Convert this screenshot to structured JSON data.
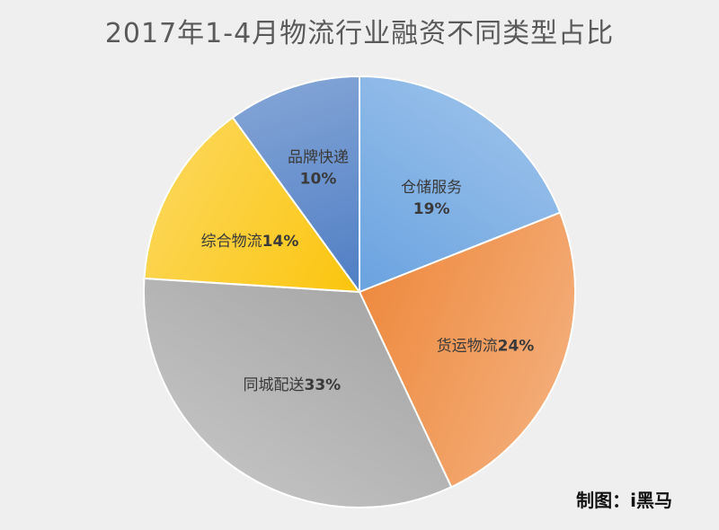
{
  "chart_data": {
    "type": "pie",
    "title": "2017年1-4月物流行业融资不同类型占比",
    "slices": [
      {
        "name": "仓储服务",
        "value": 19,
        "label": "19%",
        "color": "#6aa3e0"
      },
      {
        "name": "货运物流",
        "value": 24,
        "label": "24%",
        "color": "#ee8a3f"
      },
      {
        "name": "同城配送",
        "value": 33,
        "label": "33%",
        "color": "#a8a8a8"
      },
      {
        "name": "综合物流",
        "value": 14,
        "label": "14%",
        "color": "#fbc50d"
      },
      {
        "name": "品牌快递",
        "value": 10,
        "label": "10%",
        "color": "#4f7ec4"
      }
    ],
    "start_angle_deg": 0,
    "direction": "clockwise",
    "legend": "none"
  },
  "credit": "制图：i黑马"
}
